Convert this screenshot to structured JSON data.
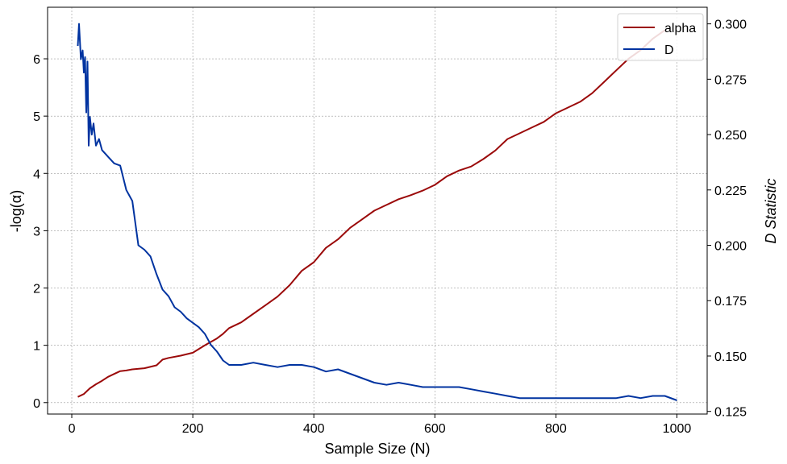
{
  "chart_data": {
    "type": "line",
    "title": "",
    "xlabel": "Sample Size (N)",
    "ylabel": "-log(α)",
    "y2label": "D Statistic",
    "xlim": [
      -40,
      1050
    ],
    "ylim": [
      -0.2,
      6.9
    ],
    "y2lim": [
      0.1238,
      0.3075
    ],
    "x_ticks": [
      0,
      200,
      400,
      600,
      800,
      1000
    ],
    "y_ticks": [
      0,
      1,
      2,
      3,
      4,
      5,
      6
    ],
    "y2_ticks": [
      0.125,
      0.15,
      0.175,
      0.2,
      0.225,
      0.25,
      0.275,
      0.3
    ],
    "y2_tick_labels": [
      "0.125",
      "0.150",
      "0.175",
      "0.200",
      "0.225",
      "0.250",
      "0.275",
      "0.300"
    ],
    "grid": true,
    "legend_position": "top-right",
    "series": [
      {
        "name": "alpha",
        "axis": "left",
        "color": "#9b0a0a",
        "x": [
          10,
          20,
          30,
          40,
          50,
          60,
          70,
          80,
          90,
          100,
          120,
          140,
          150,
          160,
          180,
          200,
          220,
          240,
          250,
          260,
          280,
          300,
          320,
          340,
          360,
          380,
          400,
          420,
          440,
          460,
          480,
          500,
          520,
          540,
          560,
          580,
          600,
          620,
          640,
          660,
          680,
          700,
          720,
          740,
          760,
          780,
          800,
          820,
          840,
          860,
          880,
          900,
          920,
          940,
          960,
          980
        ],
        "y": [
          0.1,
          0.15,
          0.25,
          0.32,
          0.38,
          0.45,
          0.5,
          0.55,
          0.56,
          0.58,
          0.6,
          0.65,
          0.75,
          0.78,
          0.82,
          0.87,
          1.0,
          1.12,
          1.2,
          1.3,
          1.4,
          1.55,
          1.7,
          1.85,
          2.05,
          2.3,
          2.45,
          2.7,
          2.85,
          3.05,
          3.2,
          3.35,
          3.45,
          3.55,
          3.62,
          3.7,
          3.8,
          3.95,
          4.05,
          4.12,
          4.25,
          4.4,
          4.6,
          4.7,
          4.8,
          4.9,
          5.05,
          5.15,
          5.25,
          5.4,
          5.6,
          5.8,
          6.0,
          6.15,
          6.35,
          6.5
        ]
      },
      {
        "name": "D",
        "axis": "right",
        "color": "#0033a0",
        "x": [
          10,
          12,
          15,
          18,
          20,
          22,
          24,
          26,
          28,
          30,
          33,
          36,
          40,
          45,
          50,
          60,
          70,
          80,
          90,
          100,
          110,
          120,
          130,
          140,
          150,
          160,
          170,
          180,
          190,
          200,
          210,
          220,
          230,
          240,
          250,
          260,
          280,
          300,
          320,
          340,
          360,
          380,
          400,
          420,
          440,
          460,
          480,
          500,
          520,
          540,
          560,
          580,
          600,
          620,
          640,
          660,
          680,
          700,
          720,
          740,
          760,
          780,
          800,
          820,
          840,
          860,
          880,
          900,
          920,
          940,
          960,
          980,
          1000
        ],
        "y": [
          0.29,
          0.3,
          0.284,
          0.288,
          0.278,
          0.285,
          0.26,
          0.283,
          0.245,
          0.258,
          0.25,
          0.255,
          0.245,
          0.248,
          0.243,
          0.24,
          0.237,
          0.236,
          0.225,
          0.22,
          0.2,
          0.198,
          0.195,
          0.187,
          0.18,
          0.177,
          0.172,
          0.17,
          0.167,
          0.165,
          0.163,
          0.16,
          0.155,
          0.152,
          0.148,
          0.146,
          0.146,
          0.147,
          0.146,
          0.145,
          0.146,
          0.146,
          0.145,
          0.143,
          0.144,
          0.142,
          0.14,
          0.138,
          0.137,
          0.138,
          0.137,
          0.136,
          0.136,
          0.136,
          0.136,
          0.135,
          0.134,
          0.133,
          0.132,
          0.131,
          0.131,
          0.131,
          0.131,
          0.131,
          0.131,
          0.131,
          0.131,
          0.131,
          0.132,
          0.131,
          0.132,
          0.132,
          0.13
        ]
      }
    ]
  }
}
